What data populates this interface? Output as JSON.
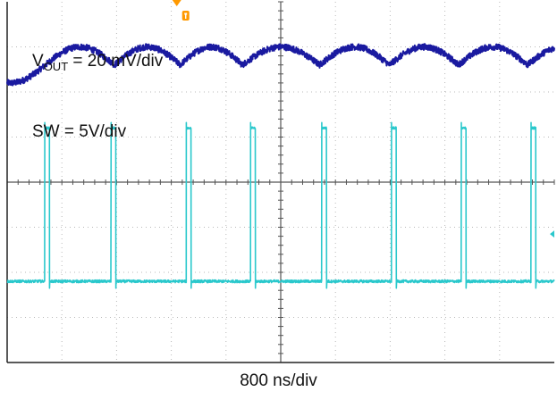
{
  "chart_data": {
    "type": "line",
    "title": "",
    "xlabel": "800 ns/div",
    "ylabel": "",
    "grid": true,
    "divisions": {
      "horizontal": 10,
      "vertical": 8
    },
    "time_per_div_ns": 800,
    "x_range_ns": [
      0,
      8000
    ],
    "trigger_position_ns": 2480,
    "series": [
      {
        "name": "VOUT",
        "label_main": "V",
        "label_sub": "OUT",
        "label_rest": " = 20 mV/div",
        "color": "#1a1aa0",
        "scale_mV_per_div": 20,
        "offset_div": 2.8,
        "ripple_mV_pp": 8,
        "dip_times_ns": [
          1570,
          2530,
          3440,
          4570,
          5590
        ],
        "peak_times_ns": [
          970,
          1900,
          3100,
          4120,
          5150,
          6000
        ]
      },
      {
        "name": "SW",
        "label": "SW = 5V/div",
        "color": "#2ac8cc",
        "scale_V_per_div": 5,
        "offset_div": -2.2,
        "low_V": 0,
        "high_V": 17,
        "pulses_ns": [
          {
            "rise": 550,
            "fall": 620
          },
          {
            "rise": 1520,
            "fall": 1590
          },
          {
            "rise": 2620,
            "fall": 2690
          },
          {
            "rise": 3560,
            "fall": 3630
          },
          {
            "rise": 4600,
            "fall": 4670
          }
        ]
      }
    ]
  },
  "labels": {
    "timebase": "800 ns/div"
  }
}
